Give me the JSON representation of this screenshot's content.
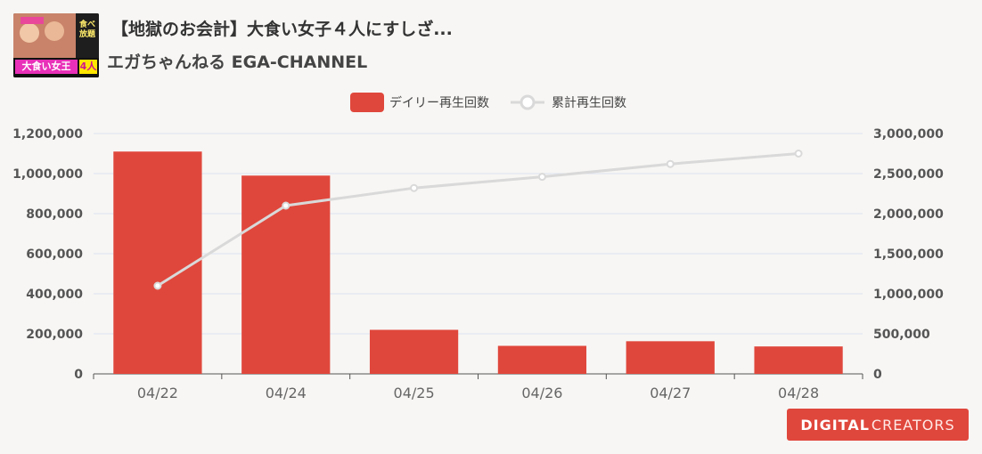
{
  "header": {
    "title": "【地獄のお会計】大食い女子４人にすしざ...",
    "channel": "エガちゃんねる EGA-CHANNEL"
  },
  "thumbnail": {
    "caption_main": "大食い女王",
    "caption_count": "4人",
    "side_text": "食べ放題"
  },
  "branding": {
    "logo_bold": "DIGITAL",
    "logo_light": "CREATORS"
  },
  "colors": {
    "bar": "#e0473c",
    "line": "#d9d9d9",
    "grid": "#dde3ef",
    "axis_text": "#555555"
  },
  "chart_data": {
    "type": "bar",
    "categories": [
      "04/22",
      "04/24",
      "04/25",
      "04/26",
      "04/27",
      "04/28"
    ],
    "series": [
      {
        "name": "デイリー再生回数",
        "type": "bar",
        "axis": "left",
        "values": [
          1110000,
          990000,
          220000,
          140000,
          163000,
          137000
        ]
      },
      {
        "name": "累計再生回数",
        "type": "line",
        "axis": "right",
        "values": [
          1100000,
          2100000,
          2320000,
          2460000,
          2620000,
          2750000
        ]
      }
    ],
    "y_left": {
      "min": 0,
      "max": 1200000,
      "ticks": [
        "0",
        "200,000",
        "400,000",
        "600,000",
        "800,000",
        "1,000,000",
        "1,200,000"
      ]
    },
    "y_right": {
      "min": 0,
      "max": 3000000,
      "ticks": [
        "0",
        "500,000",
        "1,000,000",
        "1,500,000",
        "2,000,000",
        "2,500,000",
        "3,000,000"
      ]
    },
    "legend_position": "top-center",
    "grid": true
  }
}
